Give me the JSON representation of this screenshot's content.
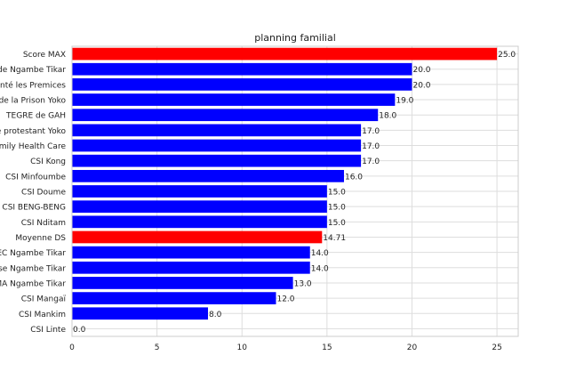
{
  "chart_data": {
    "type": "bar",
    "orientation": "horizontal",
    "title": "planning familial",
    "xlabel": "",
    "ylabel": "",
    "xlim": [
      0,
      26.25
    ],
    "xticks": [
      0,
      5,
      10,
      15,
      20,
      25
    ],
    "grid": true,
    "categories": [
      "Score MAX",
      "de Ngambe Tikar",
      "nté les Premices",
      "de la Prison Yoko",
      "TEGRE  de GAH",
      "e protestant Yoko",
      "mily Health Care",
      "CSI Kong",
      "CSI Minfoumbe",
      "CSI Doume",
      "CSI BENG-BENG",
      "CSI Nditam",
      "Moyenne DS",
      "EC Ngambe Tikar",
      "se Ngambe Tikar",
      "MA Ngambe Tikar",
      "CSI Mangaï",
      "CSI Mankim",
      "CSI Linte"
    ],
    "values": [
      25.0,
      20.0,
      20.0,
      19.0,
      18.0,
      17.0,
      17.0,
      17.0,
      16.0,
      15.0,
      15.0,
      15.0,
      14.71,
      14.0,
      14.0,
      13.0,
      12.0,
      8.0,
      0.0
    ],
    "value_labels": [
      "25.0",
      "20.0",
      "20.0",
      "19.0",
      "18.0",
      "17.0",
      "17.0",
      "17.0",
      "16.0",
      "15.0",
      "15.0",
      "15.0",
      "14.71",
      "14.0",
      "14.0",
      "13.0",
      "12.0",
      "8.0",
      "0.0"
    ],
    "bar_colors": [
      "#ff0000",
      "#0000ff",
      "#0000ff",
      "#0000ff",
      "#0000ff",
      "#0000ff",
      "#0000ff",
      "#0000ff",
      "#0000ff",
      "#0000ff",
      "#0000ff",
      "#0000ff",
      "#ff0000",
      "#0000ff",
      "#0000ff",
      "#0000ff",
      "#0000ff",
      "#0000ff",
      "#0000ff"
    ]
  }
}
